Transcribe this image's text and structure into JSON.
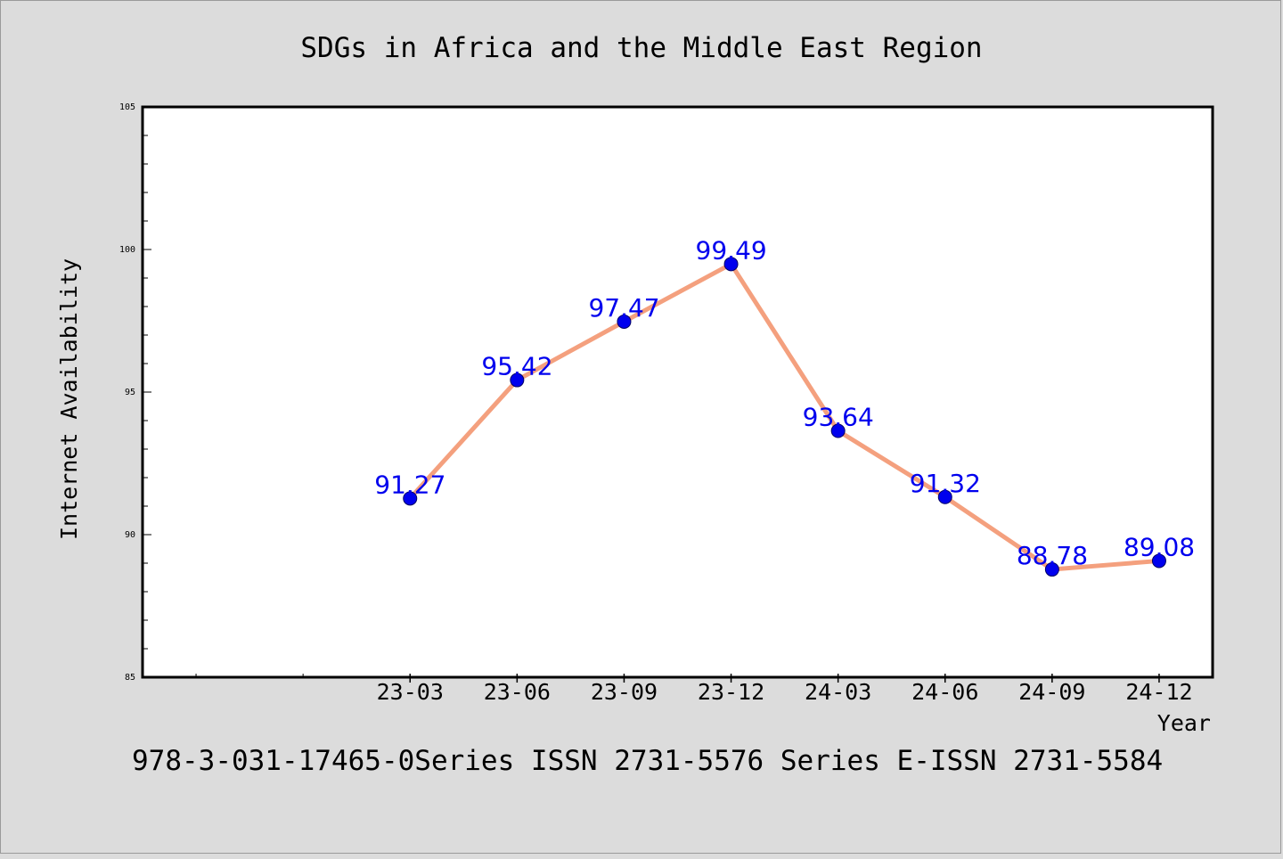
{
  "chart_data": {
    "type": "line",
    "title": "SDGs in Africa and the Middle East Region",
    "xlabel": "Year",
    "ylabel": "Internet Availability",
    "categories": [
      "23-03",
      "23-06",
      "23-09",
      "23-12",
      "24-03",
      "24-06",
      "24-09",
      "24-12"
    ],
    "values": [
      91.27,
      95.42,
      97.47,
      99.49,
      93.64,
      91.32,
      88.78,
      89.08
    ],
    "data_labels": [
      "91.27",
      "95.42",
      "97.47",
      "99.49",
      "93.64",
      "91.32",
      "88.78",
      "89.08"
    ],
    "ylim": [
      85,
      105
    ],
    "yticks": [
      "85",
      "90",
      "95",
      "100",
      "105"
    ],
    "grid": false,
    "legend": "none",
    "colors": {
      "line": "#f4a07e",
      "marker": "#0000ee",
      "label": "#0000ee",
      "plot_background": "#ffffff",
      "page_background": "#dcdcdc"
    }
  },
  "footer_text": "978-3-031-17465-0Series ISSN 2731-5576 Series E-ISSN 2731-5584"
}
